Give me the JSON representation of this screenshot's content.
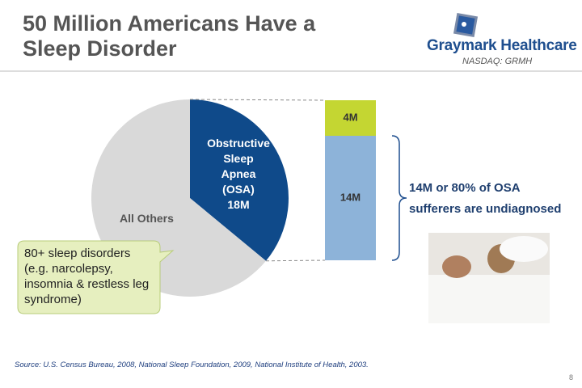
{
  "slide": {
    "title": "50 Million Americans Have a Sleep Disorder",
    "logo": "Graymark Healthcare",
    "ticker": "NASDAQ: GRMH",
    "source": "Source: U.S. Census Bureau, 2008, National Sleep Foundation, 2009, National Institute of Health, 2003.",
    "page_number": "8"
  },
  "chart_data": [
    {
      "type": "pie",
      "categories": [
        "Obstructive Sleep Apnea (OSA)",
        "All Others"
      ],
      "values": [
        18,
        32
      ],
      "value_labels": [
        "18M",
        null
      ],
      "colors": [
        "#0f4a8a",
        "#d9d9d9"
      ],
      "annotation": "80+ sleep disorders (e.g. narcolepsy, insomnia & restless leg syndrome)"
    },
    {
      "type": "bar",
      "stacked": true,
      "categories": [
        null
      ],
      "series": [
        {
          "color": "#8db3d9",
          "values": [
            14
          ],
          "value_labels": [
            "14M"
          ]
        },
        {
          "color": "#c4d632",
          "values": [
            4
          ],
          "value_labels": [
            "4M"
          ]
        }
      ],
      "annotation": "14M or 80% of OSA sufferers are undiagnosed"
    }
  ]
}
